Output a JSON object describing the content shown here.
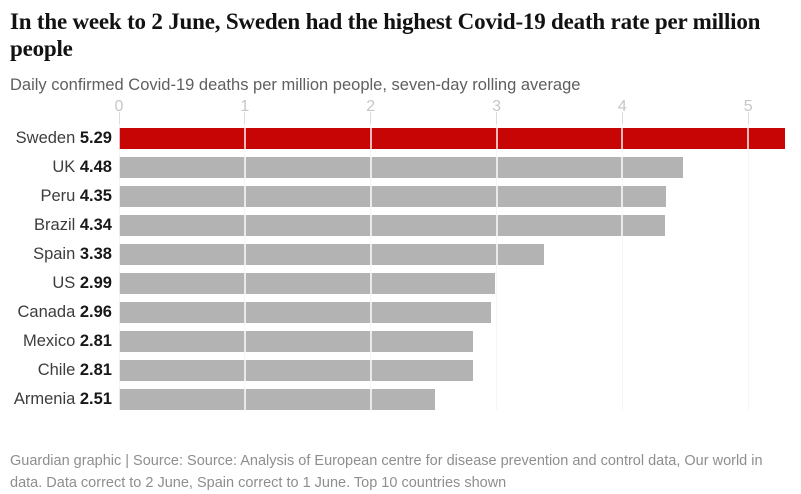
{
  "header": {
    "title": "In the week to 2 June, Sweden had the highest Covid-19 death rate per million people",
    "subtitle": "Daily confirmed Covid-19 deaths per million people, seven-day rolling average"
  },
  "chart_data": {
    "type": "bar",
    "orientation": "horizontal",
    "title": "In the week to 2 June, Sweden had the highest Covid-19 death rate per million people",
    "subtitle": "Daily confirmed Covid-19 deaths per million people, seven-day rolling average",
    "categories": [
      "Sweden",
      "UK",
      "Peru",
      "Brazil",
      "Spain",
      "US",
      "Canada",
      "Mexico",
      "Chile",
      "Armenia"
    ],
    "values": [
      5.29,
      4.48,
      4.35,
      4.34,
      3.38,
      2.99,
      2.96,
      2.81,
      2.81,
      2.51
    ],
    "value_labels": [
      "5.29",
      "4.48",
      "4.35",
      "4.34",
      "3.38",
      "2.99",
      "2.96",
      "2.81",
      "2.81",
      "2.51"
    ],
    "x_ticks": [
      0,
      1,
      2,
      3,
      4,
      5
    ],
    "xlim": [
      0,
      5.34
    ],
    "highlight_index": 0,
    "grid": "vertical",
    "legend": false,
    "colors": {
      "highlight_bar": "#c70505",
      "default_bar": "#b3b3b3",
      "gridline": "#dcdcdc",
      "tick_label": "#c6c6c6"
    }
  },
  "footer": {
    "text": "Guardian graphic | Source: Source: Analysis of European centre for disease prevention and control data, Our world in data. Data correct to 2 June, Spain correct to 1 June. Top 10 countries shown"
  }
}
